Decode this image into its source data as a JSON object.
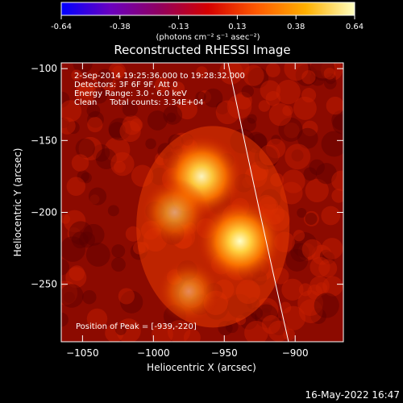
{
  "colorbar": {
    "ticks": [
      "-0.64",
      "-0.38",
      "-0.13",
      "0.13",
      "0.38",
      "0.64"
    ],
    "units_label": "(photons cm⁻² s⁻¹ asec⁻²)",
    "stops": [
      "#0000ff",
      "#6a00c0",
      "#900060",
      "#d40000",
      "#ff5a00",
      "#ffb000",
      "#ffffc0"
    ]
  },
  "plot": {
    "title": "Reconstructed RHESSI Image",
    "x_label": "Heliocentric X (arcsec)",
    "y_label": "Heliocentric Y (arcsec)",
    "x_ticks": [
      "-1050",
      "-1000",
      "-950",
      "-900"
    ],
    "y_ticks": [
      "-100",
      "-150",
      "-200",
      "-250"
    ],
    "x_range": [
      -1065,
      -866
    ],
    "y_range": [
      -290,
      -96
    ],
    "info_lines": [
      "2-Sep-2014 19:25:36.000 to 19:28:32.000",
      "Detectors: 3F 6F 9F, Att 0",
      "Energy Range: 3.0 - 6.0 keV",
      "Clean     Total counts: 3.34E+04"
    ],
    "peak_label": "Position of Peak = [-939,-220]",
    "sources": [
      {
        "x": -966,
        "y": -175,
        "strength": 0.95
      },
      {
        "x": -939,
        "y": -220,
        "strength": 1.0
      },
      {
        "x": -985,
        "y": -200,
        "strength": 0.55
      },
      {
        "x": -975,
        "y": -255,
        "strength": 0.45
      }
    ],
    "limb_colour": "#ffffff"
  },
  "footer": {
    "timestamp": "16-May-2022 16:47"
  }
}
